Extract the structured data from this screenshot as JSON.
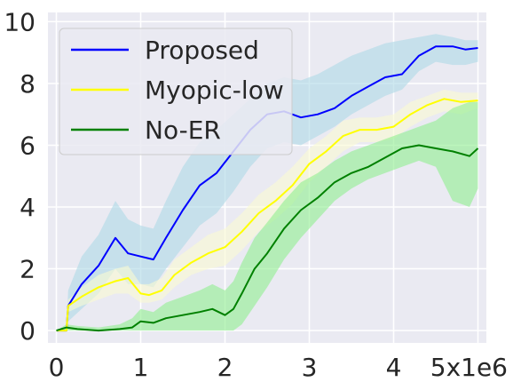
{
  "chart_data": {
    "type": "line",
    "title": "",
    "xlabel": "",
    "ylabel": "",
    "xlim": [
      -0.1,
      5.1
    ],
    "ylim": [
      -0.4,
      10.3
    ],
    "x_ticks": [
      0,
      1,
      2,
      3,
      4,
      5
    ],
    "x_tick_labels": [
      "0",
      "1",
      "2",
      "3",
      "4",
      "5x1e6"
    ],
    "y_ticks": [
      0,
      2,
      4,
      6,
      8,
      10
    ],
    "y_tick_labels": [
      "0",
      "2",
      "4",
      "6",
      "8",
      "10"
    ],
    "grid": true,
    "legend_position": "top-left",
    "background_color": "#eaeaf2",
    "series": [
      {
        "name": "Proposed",
        "color": "#0000ff",
        "band_color": "#add8e6",
        "x": [
          0.0,
          0.12,
          0.14,
          0.3,
          0.5,
          0.7,
          0.85,
          1.0,
          1.15,
          1.3,
          1.5,
          1.7,
          1.9,
          2.1,
          2.3,
          2.5,
          2.7,
          2.9,
          3.1,
          3.3,
          3.5,
          3.7,
          3.9,
          4.1,
          4.3,
          4.5,
          4.7,
          4.85,
          5.0
        ],
        "y": [
          0.0,
          0.0,
          0.8,
          1.5,
          2.1,
          3.0,
          2.5,
          2.4,
          2.3,
          3.0,
          3.9,
          4.7,
          5.1,
          5.8,
          6.5,
          7.0,
          7.1,
          6.9,
          7.0,
          7.2,
          7.6,
          7.9,
          8.2,
          8.3,
          8.9,
          9.2,
          9.2,
          9.1,
          9.15
        ],
        "lower": [
          0.0,
          0.0,
          0.3,
          0.7,
          1.2,
          2.0,
          1.5,
          1.5,
          1.4,
          2.0,
          2.7,
          3.4,
          3.8,
          4.5,
          5.3,
          5.9,
          6.1,
          6.0,
          6.3,
          6.6,
          7.0,
          7.3,
          7.6,
          7.8,
          8.4,
          8.7,
          8.6,
          8.6,
          8.7
        ],
        "upper": [
          0.0,
          0.0,
          1.3,
          2.4,
          3.1,
          4.2,
          3.6,
          3.4,
          3.3,
          4.2,
          5.3,
          6.1,
          6.5,
          7.0,
          7.5,
          8.0,
          8.2,
          8.1,
          8.3,
          8.6,
          8.9,
          9.1,
          9.3,
          9.4,
          9.5,
          9.6,
          9.5,
          9.4,
          9.4
        ]
      },
      {
        "name": "Myopic-low",
        "color": "#ffff00",
        "band_color": "#fafad2",
        "x": [
          0.0,
          0.12,
          0.14,
          0.3,
          0.5,
          0.7,
          0.85,
          1.0,
          1.1,
          1.25,
          1.4,
          1.6,
          1.8,
          2.0,
          2.2,
          2.4,
          2.6,
          2.8,
          3.0,
          3.2,
          3.4,
          3.6,
          3.8,
          4.0,
          4.2,
          4.4,
          4.6,
          4.8,
          5.0
        ],
        "y": [
          0.0,
          0.0,
          0.8,
          1.1,
          1.4,
          1.6,
          1.7,
          1.2,
          1.15,
          1.3,
          1.8,
          2.2,
          2.5,
          2.7,
          3.2,
          3.8,
          4.2,
          4.7,
          5.4,
          5.8,
          6.3,
          6.5,
          6.5,
          6.6,
          7.0,
          7.3,
          7.5,
          7.4,
          7.45
        ],
        "lower": [
          0.0,
          0.0,
          0.6,
          0.8,
          1.0,
          1.2,
          1.2,
          0.9,
          0.9,
          1.0,
          1.4,
          1.8,
          2.0,
          2.1,
          2.6,
          3.2,
          3.6,
          4.1,
          4.8,
          5.3,
          5.8,
          6.1,
          6.1,
          6.2,
          6.6,
          6.9,
          7.1,
          7.0,
          7.2
        ],
        "upper": [
          0.0,
          0.0,
          1.0,
          1.4,
          1.8,
          2.0,
          2.1,
          1.5,
          1.5,
          1.7,
          2.3,
          2.7,
          3.1,
          3.3,
          3.8,
          4.4,
          4.8,
          5.3,
          5.9,
          6.3,
          6.8,
          6.9,
          6.9,
          7.0,
          7.4,
          7.6,
          7.8,
          7.7,
          7.7
        ]
      },
      {
        "name": "No-ER",
        "color": "#008000",
        "band_color": "#90ee90",
        "x": [
          0.0,
          0.12,
          0.25,
          0.5,
          0.75,
          0.9,
          1.0,
          1.15,
          1.3,
          1.5,
          1.7,
          1.85,
          2.0,
          2.1,
          2.2,
          2.35,
          2.5,
          2.7,
          2.9,
          3.1,
          3.3,
          3.5,
          3.7,
          3.9,
          4.1,
          4.3,
          4.5,
          4.7,
          4.9,
          5.0
        ],
        "y": [
          0.0,
          0.1,
          0.05,
          0.0,
          0.05,
          0.1,
          0.3,
          0.25,
          0.4,
          0.5,
          0.6,
          0.7,
          0.5,
          0.7,
          1.2,
          2.0,
          2.5,
          3.3,
          3.9,
          4.3,
          4.8,
          5.1,
          5.3,
          5.6,
          5.9,
          6.0,
          5.9,
          5.8,
          5.65,
          5.9
        ],
        "lower": [
          0.0,
          0.0,
          0.0,
          0.0,
          0.0,
          0.0,
          0.0,
          0.0,
          0.0,
          0.0,
          0.0,
          0.0,
          0.0,
          0.0,
          0.2,
          0.8,
          1.4,
          2.3,
          3.0,
          3.6,
          4.2,
          4.6,
          4.9,
          5.1,
          5.3,
          5.5,
          5.3,
          4.2,
          4.0,
          4.6
        ],
        "upper": [
          0.0,
          0.2,
          0.15,
          0.1,
          0.2,
          0.4,
          0.7,
          0.6,
          0.9,
          1.1,
          1.3,
          1.5,
          1.3,
          1.6,
          2.2,
          3.0,
          3.5,
          4.2,
          4.8,
          5.1,
          5.5,
          5.8,
          6.0,
          6.2,
          6.4,
          6.6,
          6.8,
          7.2,
          7.4,
          7.4
        ]
      }
    ]
  }
}
